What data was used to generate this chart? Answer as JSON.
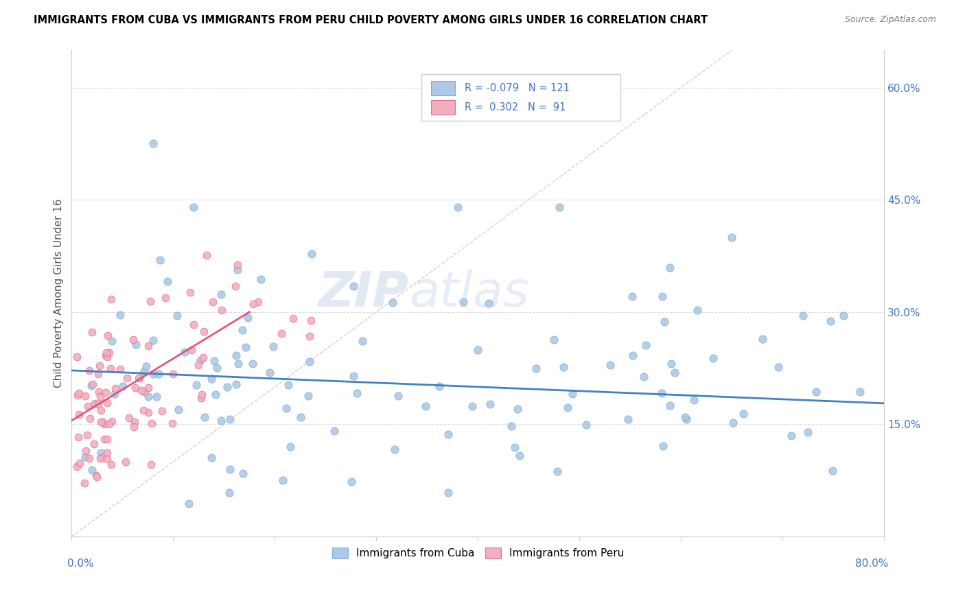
{
  "title": "IMMIGRANTS FROM CUBA VS IMMIGRANTS FROM PERU CHILD POVERTY AMONG GIRLS UNDER 16 CORRELATION CHART",
  "source": "Source: ZipAtlas.com",
  "ylabel": "Child Poverty Among Girls Under 16",
  "ylabel_right_ticks": [
    "60.0%",
    "45.0%",
    "30.0%",
    "15.0%"
  ],
  "ylabel_right_vals": [
    0.6,
    0.45,
    0.3,
    0.15
  ],
  "xlim": [
    0.0,
    0.8
  ],
  "ylim": [
    0.0,
    0.65
  ],
  "legend_cuba_r": "-0.079",
  "legend_cuba_n": "121",
  "legend_peru_r": "0.302",
  "legend_peru_n": "91",
  "cuba_color": "#aec9e8",
  "peru_color": "#f2afc0",
  "cuba_edge_color": "#7aafd4",
  "peru_edge_color": "#e07090",
  "cuba_line_color": "#3a7abf",
  "peru_line_color": "#e05070",
  "watermark_zip": "ZIP",
  "watermark_atlas": "atlas",
  "diag_line_color": "#cccccc",
  "grid_color": "#dddddd",
  "tick_color": "#4472c4",
  "title_color": "#000000",
  "source_color": "#808080",
  "ylabel_color": "#555555",
  "cuba_trend_x": [
    0.0,
    0.8
  ],
  "cuba_trend_y": [
    0.222,
    0.178
  ],
  "peru_trend_x": [
    0.0,
    0.175
  ],
  "peru_trend_y": [
    0.155,
    0.3
  ]
}
